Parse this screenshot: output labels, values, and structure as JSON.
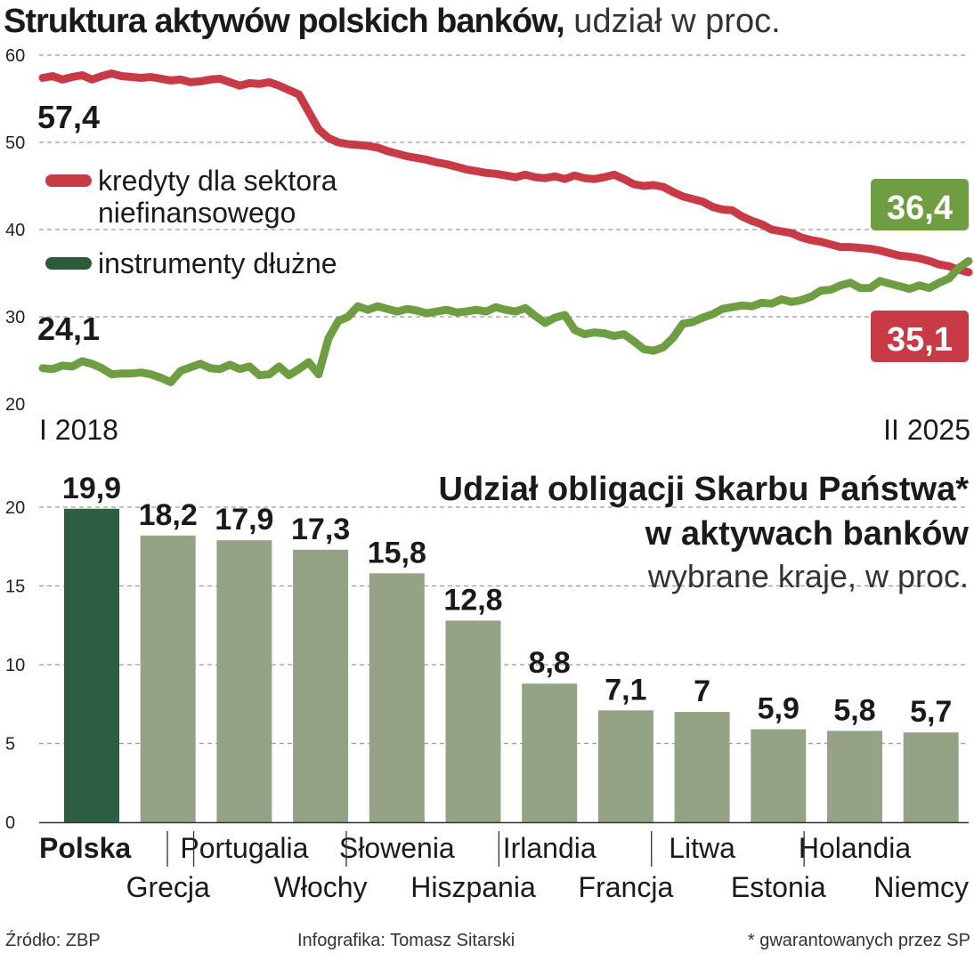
{
  "title_bold": "Struktura aktywów polskich banków,",
  "title_light": " udział w proc.",
  "chart_data": [
    {
      "type": "line",
      "x_start_label": "I 2018",
      "x_end_label": "II 2025",
      "ylim": [
        20,
        60
      ],
      "yticks": [
        "20",
        "30",
        "40",
        "50",
        "60"
      ],
      "grid": true,
      "series": [
        {
          "name": "kredyty dla sektora niefinansowego",
          "name_line1": "kredyty dla sektora",
          "name_line2": "niefinansowego",
          "color": "#c93a47",
          "start_label": "57,4",
          "end_label": "35,1",
          "values": [
            57.4,
            57.6,
            57.2,
            57.5,
            57.7,
            57.2,
            57.6,
            57.9,
            57.6,
            57.5,
            57.4,
            57.5,
            57.3,
            57.1,
            57.2,
            56.9,
            57.0,
            57.2,
            57.3,
            56.9,
            56.5,
            56.8,
            56.7,
            56.9,
            56.5,
            56.0,
            55.5,
            53.5,
            51.5,
            50.5,
            50.0,
            49.8,
            49.7,
            49.6,
            49.4,
            49.0,
            48.7,
            48.4,
            48.2,
            48.0,
            47.7,
            47.5,
            47.2,
            46.9,
            46.7,
            46.5,
            46.4,
            46.2,
            46.0,
            46.3,
            46.0,
            45.9,
            46.1,
            45.8,
            46.2,
            45.9,
            45.8,
            46.0,
            46.3,
            45.8,
            45.2,
            45.0,
            45.1,
            44.9,
            44.3,
            43.8,
            43.5,
            43.2,
            42.6,
            42.3,
            42.2,
            41.5,
            41.0,
            40.6,
            40.0,
            39.8,
            39.6,
            39.1,
            38.8,
            38.6,
            38.3,
            38.0,
            38.0,
            37.9,
            37.8,
            37.6,
            37.3,
            37.0,
            36.9,
            36.7,
            36.4,
            36.0,
            35.8,
            35.4,
            35.1
          ],
          "value_labels": []
        },
        {
          "name": "instrumenty dłużne",
          "color": "#6f9e42",
          "legend_color": "#2e5a3a",
          "start_label": "24,1",
          "end_label": "36,4",
          "values": [
            24.1,
            24.0,
            24.4,
            24.3,
            24.9,
            24.6,
            24.1,
            23.4,
            23.5,
            23.5,
            23.6,
            23.4,
            23.0,
            22.5,
            23.8,
            24.2,
            24.6,
            24.1,
            24.0,
            24.5,
            24.0,
            24.3,
            23.3,
            23.4,
            24.3,
            23.3,
            24.0,
            24.8,
            23.4,
            27.5,
            29.5,
            30.0,
            31.2,
            30.8,
            31.2,
            30.9,
            30.6,
            30.9,
            30.7,
            30.4,
            30.6,
            30.8,
            30.5,
            30.6,
            30.8,
            30.6,
            31.1,
            30.8,
            30.6,
            31.0,
            30.1,
            29.3,
            29.9,
            30.2,
            28.5,
            28.0,
            28.2,
            28.1,
            27.8,
            28.0,
            27.2,
            26.3,
            26.1,
            26.5,
            27.6,
            29.2,
            29.4,
            29.9,
            30.3,
            30.9,
            31.1,
            31.3,
            31.2,
            31.6,
            31.5,
            32.0,
            31.7,
            31.9,
            32.3,
            33.0,
            33.1,
            33.6,
            33.9,
            33.3,
            33.3,
            34.1,
            33.8,
            33.5,
            33.2,
            33.6,
            33.3,
            33.9,
            34.4,
            35.6,
            36.4
          ],
          "value_labels": []
        }
      ]
    },
    {
      "type": "bar",
      "title_line1": "Udział obligacji Skarbu Państwa*",
      "title_line2": "w aktywach banków",
      "subtitle": "wybrane kraje, w proc.",
      "ylim": [
        0,
        22
      ],
      "yticks": [
        "0",
        "5",
        "10",
        "15",
        "20"
      ],
      "categories": [
        "Polska",
        "Grecja",
        "Portugalia",
        "Włochy",
        "Słowenia",
        "Hiszpania",
        "Irlandia",
        "Francja",
        "Litwa",
        "Estonia",
        "Holandia",
        "Niemcy"
      ],
      "values": [
        19.9,
        18.2,
        17.9,
        17.3,
        15.8,
        12.8,
        8.8,
        7.1,
        7,
        5.9,
        5.8,
        5.7
      ],
      "value_labels": [
        "19,9",
        "18,2",
        "17,9",
        "17,3",
        "15,8",
        "12,8",
        "8,8",
        "7,1",
        "7",
        "5,9",
        "5,8",
        "5,7"
      ],
      "highlight_color": "#2c5e42",
      "bar_color": "#94a385"
    }
  ],
  "footer": {
    "source": "Źródło: ZBP",
    "credit": "Infografika: Tomasz Sitarski",
    "note": "* gwarantowanych przez SP"
  }
}
